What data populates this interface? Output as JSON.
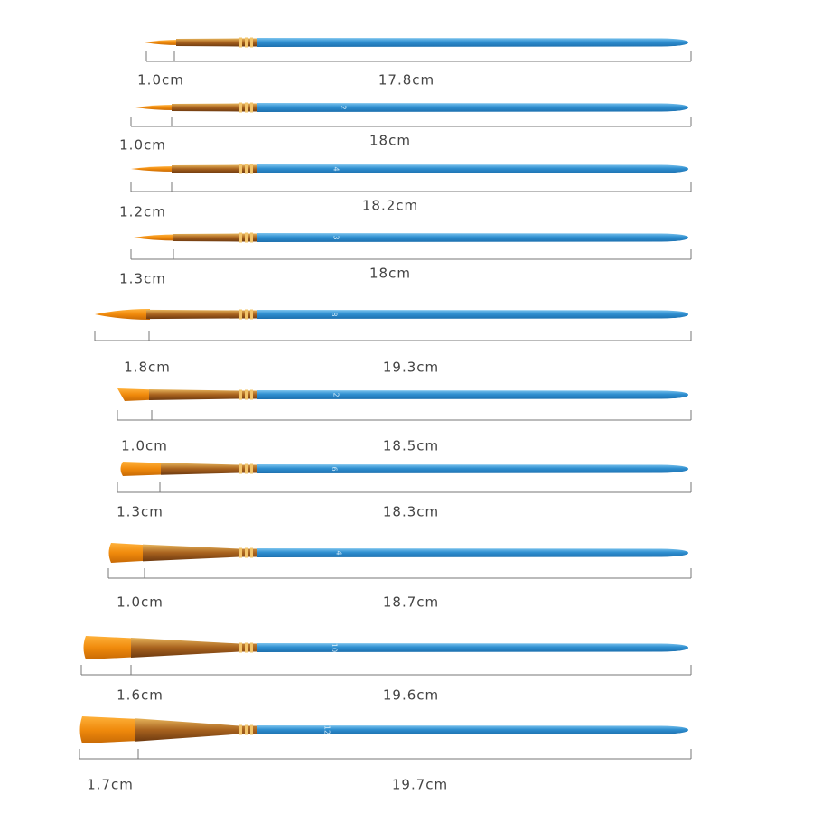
{
  "brushes": [
    {
      "tip_length": "1.0cm",
      "total_length": "17.8cm"
    },
    {
      "tip_length": "1.0cm",
      "total_length": "18cm",
      "handle_number": "2"
    },
    {
      "tip_length": "1.2cm",
      "total_length": "18.2cm",
      "handle_number": "4"
    },
    {
      "tip_length": "1.3cm",
      "total_length": "18cm",
      "handle_number": "3"
    },
    {
      "tip_length": "1.8cm",
      "total_length": "19.3cm",
      "handle_number": "8"
    },
    {
      "tip_length": "1.0cm",
      "total_length": "18.5cm",
      "handle_number": "2"
    },
    {
      "tip_length": "1.3cm",
      "total_length": "18.3cm",
      "handle_number": "6"
    },
    {
      "tip_length": "1.0cm",
      "total_length": "18.7cm",
      "handle_number": "4"
    },
    {
      "tip_length": "1.6cm",
      "total_length": "19.6cm",
      "handle_number": "10"
    },
    {
      "tip_length": "1.7cm",
      "total_length": "19.7cm",
      "handle_number": "12"
    }
  ]
}
